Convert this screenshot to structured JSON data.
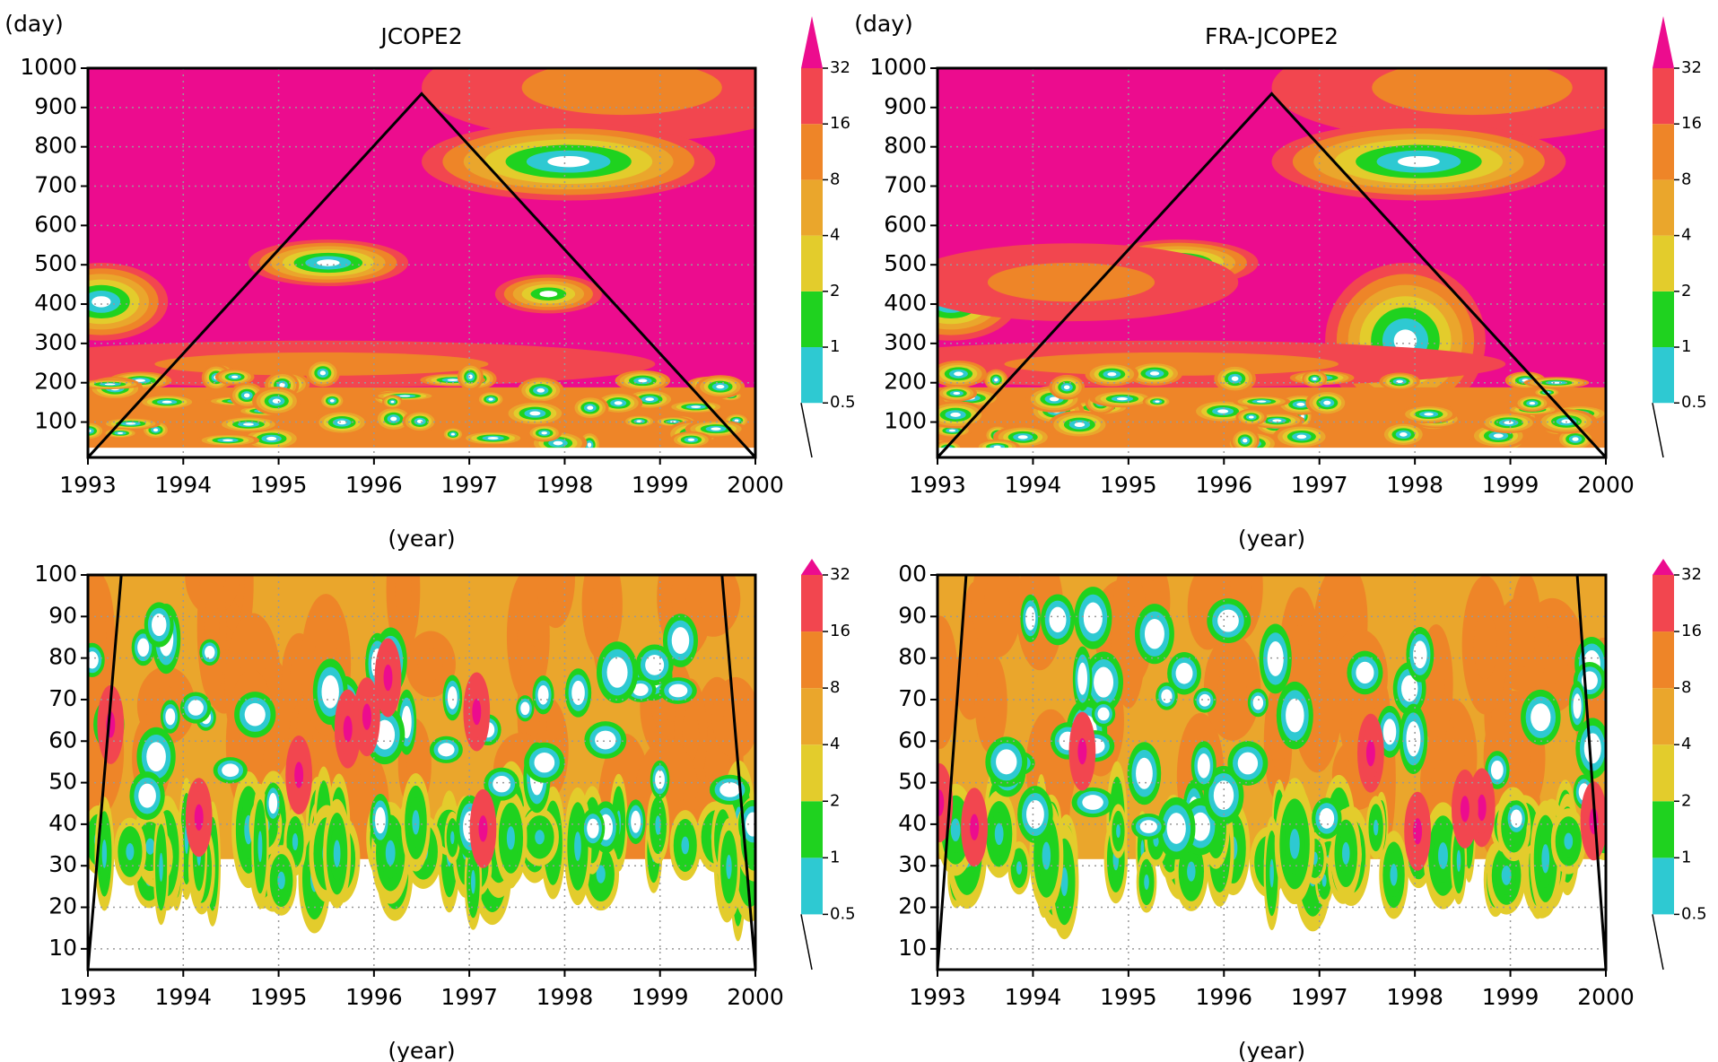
{
  "chart_data": [
    {
      "type": "contour",
      "title": "JCOPE2",
      "y_label": "(day)",
      "x_label": "(year)",
      "xlim": [
        1993,
        2000
      ],
      "ylim": [
        10,
        1000
      ],
      "xticks": [
        1993,
        1994,
        1995,
        1996,
        1997,
        1998,
        1999,
        2000
      ],
      "yticks": [
        100,
        200,
        300,
        400,
        500,
        600,
        700,
        800,
        900,
        1000
      ],
      "grid": true,
      "levels": [
        0.5,
        1,
        2,
        4,
        8,
        16,
        32
      ],
      "colors": [
        "#ffffff",
        "#2ec9d2",
        "#1fd21f",
        "#e3cc2c",
        "#eaa62c",
        "#ee8528",
        "#f2464f",
        "#ec0c8e"
      ],
      "cone_x": [
        1993,
        1996.5,
        2000
      ],
      "cone_y": [
        10,
        935,
        10
      ],
      "cone_color": "#000000"
    },
    {
      "type": "contour",
      "title": "FRA-JCOPE2",
      "y_label": "(day)",
      "x_label": "(year)",
      "xlim": [
        1993,
        2000
      ],
      "ylim": [
        10,
        1000
      ],
      "xticks": [
        1993,
        1994,
        1995,
        1996,
        1997,
        1998,
        1999,
        2000
      ],
      "yticks": [
        100,
        200,
        300,
        400,
        500,
        600,
        700,
        800,
        900,
        1000
      ],
      "grid": true,
      "levels": [
        0.5,
        1,
        2,
        4,
        8,
        16,
        32
      ],
      "colors": [
        "#ffffff",
        "#2ec9d2",
        "#1fd21f",
        "#e3cc2c",
        "#eaa62c",
        "#ee8528",
        "#f2464f",
        "#ec0c8e"
      ],
      "cone_x": [
        1993,
        1996.5,
        2000
      ],
      "cone_y": [
        10,
        935,
        10
      ],
      "cone_color": "#000000"
    },
    {
      "type": "contour",
      "x_label": "(year)",
      "xlim": [
        1993,
        2000
      ],
      "ylim": [
        5,
        100
      ],
      "xticks": [
        1993,
        1994,
        1995,
        1996,
        1997,
        1998,
        1999,
        2000
      ],
      "yticks": [
        10,
        20,
        30,
        40,
        50,
        60,
        70,
        80,
        90,
        100
      ],
      "grid": true,
      "levels": [
        0.5,
        1,
        2,
        4,
        8,
        16,
        32
      ],
      "colors": [
        "#ffffff",
        "#2ec9d2",
        "#1fd21f",
        "#e3cc2c",
        "#eaa62c",
        "#ee8528",
        "#f2464f",
        "#ec0c8e"
      ],
      "cone_x": [
        1993,
        1993.35,
        null,
        1999.65,
        2000
      ],
      "cone_y": [
        5,
        100,
        null,
        100,
        5
      ],
      "cone_color": "#000000"
    },
    {
      "type": "contour",
      "x_label": "(year)",
      "xlim": [
        1993,
        2000
      ],
      "ylim": [
        5,
        100
      ],
      "xticks": [
        1993,
        1994,
        1995,
        1996,
        1997,
        1998,
        1999,
        2000
      ],
      "yticks": [
        10,
        20,
        30,
        40,
        50,
        60,
        70,
        80,
        90,
        {
          "value": 100,
          "label": "00"
        }
      ],
      "grid": true,
      "levels": [
        0.5,
        1,
        2,
        4,
        8,
        16,
        32
      ],
      "colors": [
        "#ffffff",
        "#2ec9d2",
        "#1fd21f",
        "#e3cc2c",
        "#eaa62c",
        "#ee8528",
        "#f2464f",
        "#ec0c8e"
      ],
      "cone_x": [
        1993,
        1993.3,
        null,
        1999.7,
        2000
      ],
      "cone_y": [
        5,
        100,
        null,
        100,
        5
      ],
      "cone_color": "#000000"
    }
  ]
}
